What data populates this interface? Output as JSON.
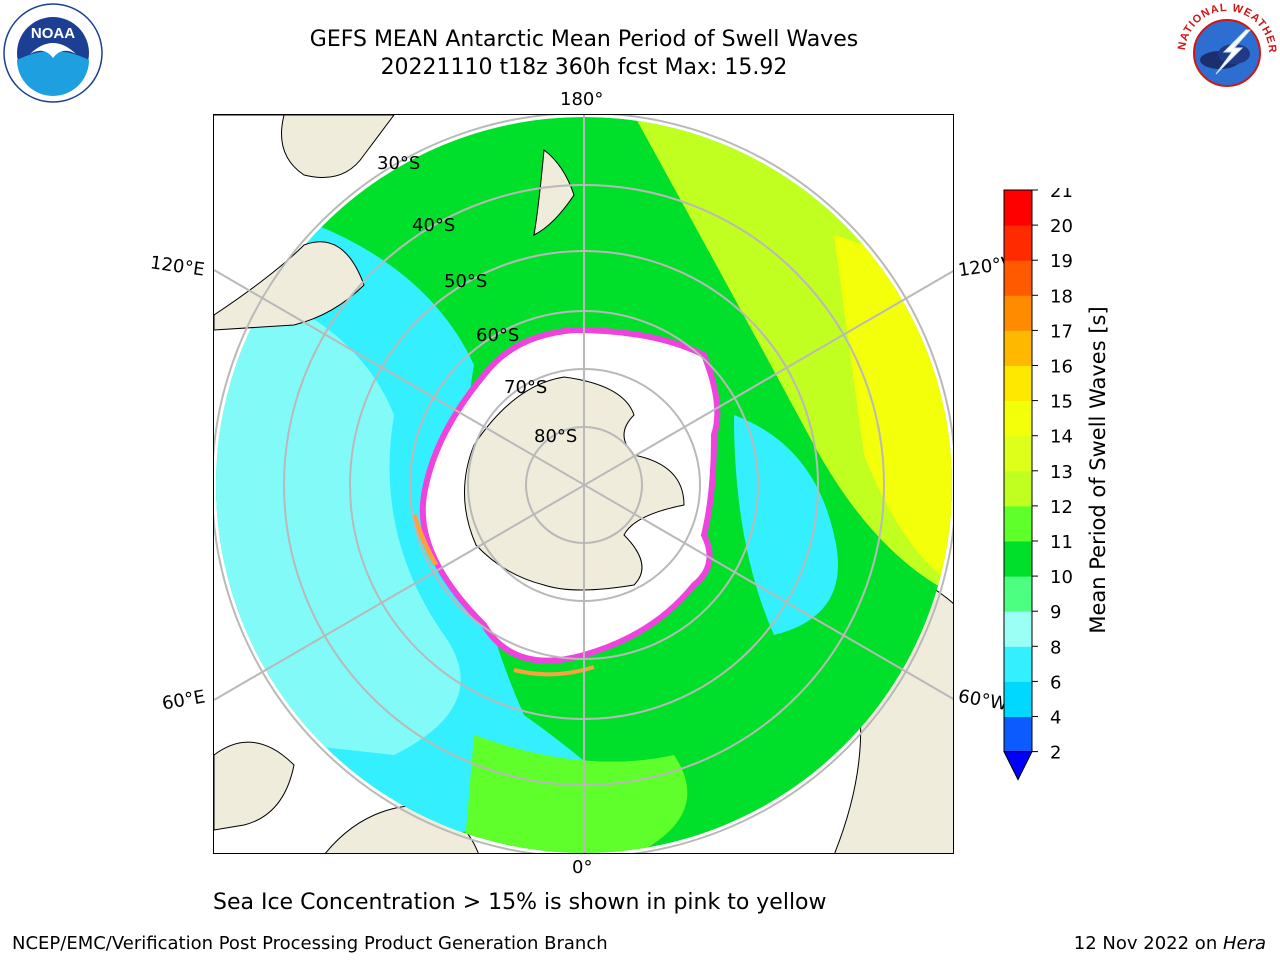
{
  "title": {
    "line1": "GEFS MEAN Antarctic Mean Period of Swell Waves",
    "line2": "20221110 t18z 360h fcst   Max: 15.92"
  },
  "map": {
    "projection": "south-polar-stereographic",
    "longitude_labels": {
      "top": "180°",
      "bottom": "0°",
      "left_upper": "120°E",
      "left_lower": "60°E",
      "right_upper": "120°W",
      "right_lower": "60°W"
    },
    "latitude_labels": [
      "30°S",
      "40°S",
      "50°S",
      "60°S",
      "70°S",
      "80°S"
    ]
  },
  "colorbar": {
    "label": "Mean Period of Swell Waves [s]",
    "ticks": [
      "2",
      "4",
      "6",
      "8",
      "9",
      "10",
      "11",
      "12",
      "13",
      "14",
      "15",
      "16",
      "17",
      "18",
      "19",
      "20",
      "21"
    ],
    "colors": [
      "#0b5bff",
      "#00d8ff",
      "#34f0ff",
      "#9cfff5",
      "#4dff80",
      "#00e02a",
      "#5fff2b",
      "#c0ff20",
      "#ddff1a",
      "#f4ff0a",
      "#ffe800",
      "#ffb800",
      "#ff8c00",
      "#ff5a00",
      "#ff2a00",
      "#ff0000"
    ],
    "extend_min_color": "#0000ff"
  },
  "footnote": "Sea Ice Concentration > 15% is shown in pink to yellow",
  "credit_left": "NCEP/EMC/Verification Post Processing Product Generation Branch",
  "credit_right_date": "12 Nov 2022 on ",
  "credit_right_machine": "Hera",
  "logos": {
    "left": "noaa-logo",
    "right": "nws-logo",
    "right_ring_text": "NATIONAL WEATHER SERVICE"
  }
}
